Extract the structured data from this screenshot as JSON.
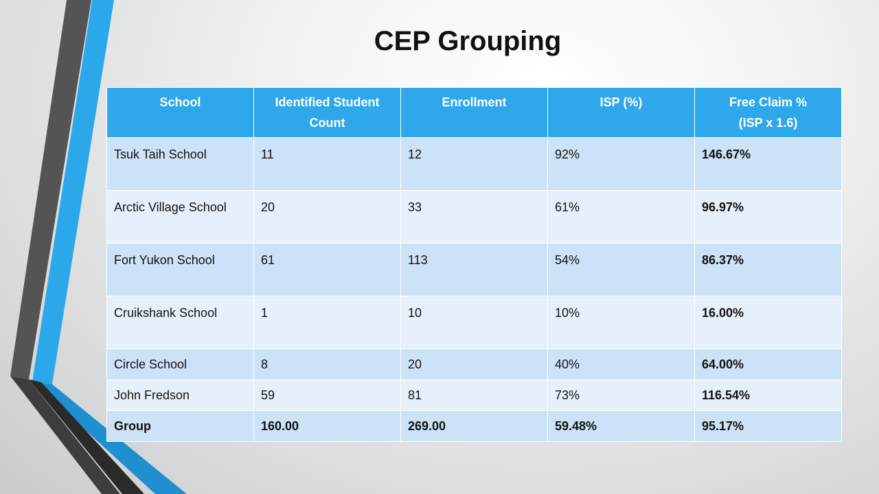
{
  "title": "CEP Grouping",
  "table": {
    "headers": [
      [
        "School"
      ],
      [
        "Identified Student",
        "Count"
      ],
      [
        "Enrollment"
      ],
      [
        "ISP (%)"
      ],
      [
        "Free Claim %",
        "(ISP x 1.6)"
      ]
    ],
    "rows": [
      {
        "school": "Tsuk Taih School",
        "identified": "11",
        "enrollment": "12",
        "isp": "92%",
        "free_claim": "146.67%"
      },
      {
        "school": "Arctic Village School",
        "identified": "20",
        "enrollment": "33",
        "isp": "61%",
        "free_claim": "96.97%"
      },
      {
        "school": "Fort Yukon School",
        "identified": "61",
        "enrollment": "113",
        "isp": "54%",
        "free_claim": "86.37%"
      },
      {
        "school": "Cruikshank School",
        "identified": "1",
        "enrollment": "10",
        "isp": "10%",
        "free_claim": "16.00%"
      },
      {
        "school": "Circle School",
        "identified": "8",
        "enrollment": "20",
        "isp": "40%",
        "free_claim": "64.00%"
      },
      {
        "school": "John Fredson",
        "identified": "59",
        "enrollment": "81",
        "isp": "73%",
        "free_claim": "116.54%"
      },
      {
        "school": "Group",
        "identified": "160.00",
        "enrollment": "269.00",
        "isp": "59.48%",
        "free_claim": "95.17%"
      }
    ]
  },
  "colors": {
    "header_bg": "#2ea8ea",
    "row_dark": "#cbe2f7",
    "row_light": "#e6f0fa",
    "accent_blue": "#29a9ea",
    "accent_gray": "#555555"
  }
}
